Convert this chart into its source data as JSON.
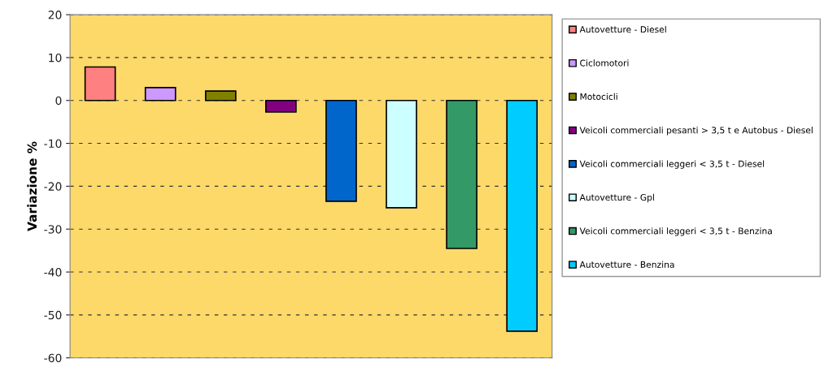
{
  "chart_data": {
    "type": "bar",
    "ylabel": "Variazione %",
    "categories": [
      null,
      null,
      null,
      null,
      null,
      null,
      null,
      null
    ],
    "series": [
      {
        "name": "Autovetture - Diesel",
        "color": "#ff8080",
        "values": [
          7.8,
          null,
          null,
          null,
          null,
          null,
          null,
          null
        ]
      },
      {
        "name": "Ciclomotori",
        "color": "#cc99ff",
        "values": [
          null,
          3.0,
          null,
          null,
          null,
          null,
          null,
          null
        ]
      },
      {
        "name": "Motocicli",
        "color": "#808000",
        "values": [
          null,
          null,
          2.2,
          null,
          null,
          null,
          null,
          null
        ]
      },
      {
        "name": "Veicoli commerciali pesanti > 3,5 t e Autobus - Diesel",
        "color": "#800080",
        "values": [
          null,
          null,
          null,
          -2.7,
          null,
          null,
          null,
          null
        ]
      },
      {
        "name": "Veicoli commerciali leggeri < 3,5 t - Diesel",
        "color": "#0066cc",
        "values": [
          null,
          null,
          null,
          null,
          -23.5,
          null,
          null,
          null
        ]
      },
      {
        "name": "Autovetture - Gpl",
        "color": "#ccffff",
        "values": [
          null,
          null,
          null,
          null,
          null,
          -25,
          null,
          null
        ]
      },
      {
        "name": "Veicoli commerciali leggeri < 3,5 t - Benzina",
        "color": "#339966",
        "values": [
          null,
          null,
          null,
          null,
          null,
          null,
          -34.5,
          null
        ]
      },
      {
        "name": "Autovetture - Benzina",
        "color": "#00ccff",
        "values": [
          null,
          null,
          null,
          null,
          null,
          null,
          null,
          -53.8
        ]
      }
    ],
    "ylim": [
      -60,
      20
    ],
    "yticks": [
      -60,
      -50,
      -40,
      -30,
      -20,
      -10,
      0,
      10,
      20
    ],
    "grid": "y",
    "legend": "right"
  }
}
